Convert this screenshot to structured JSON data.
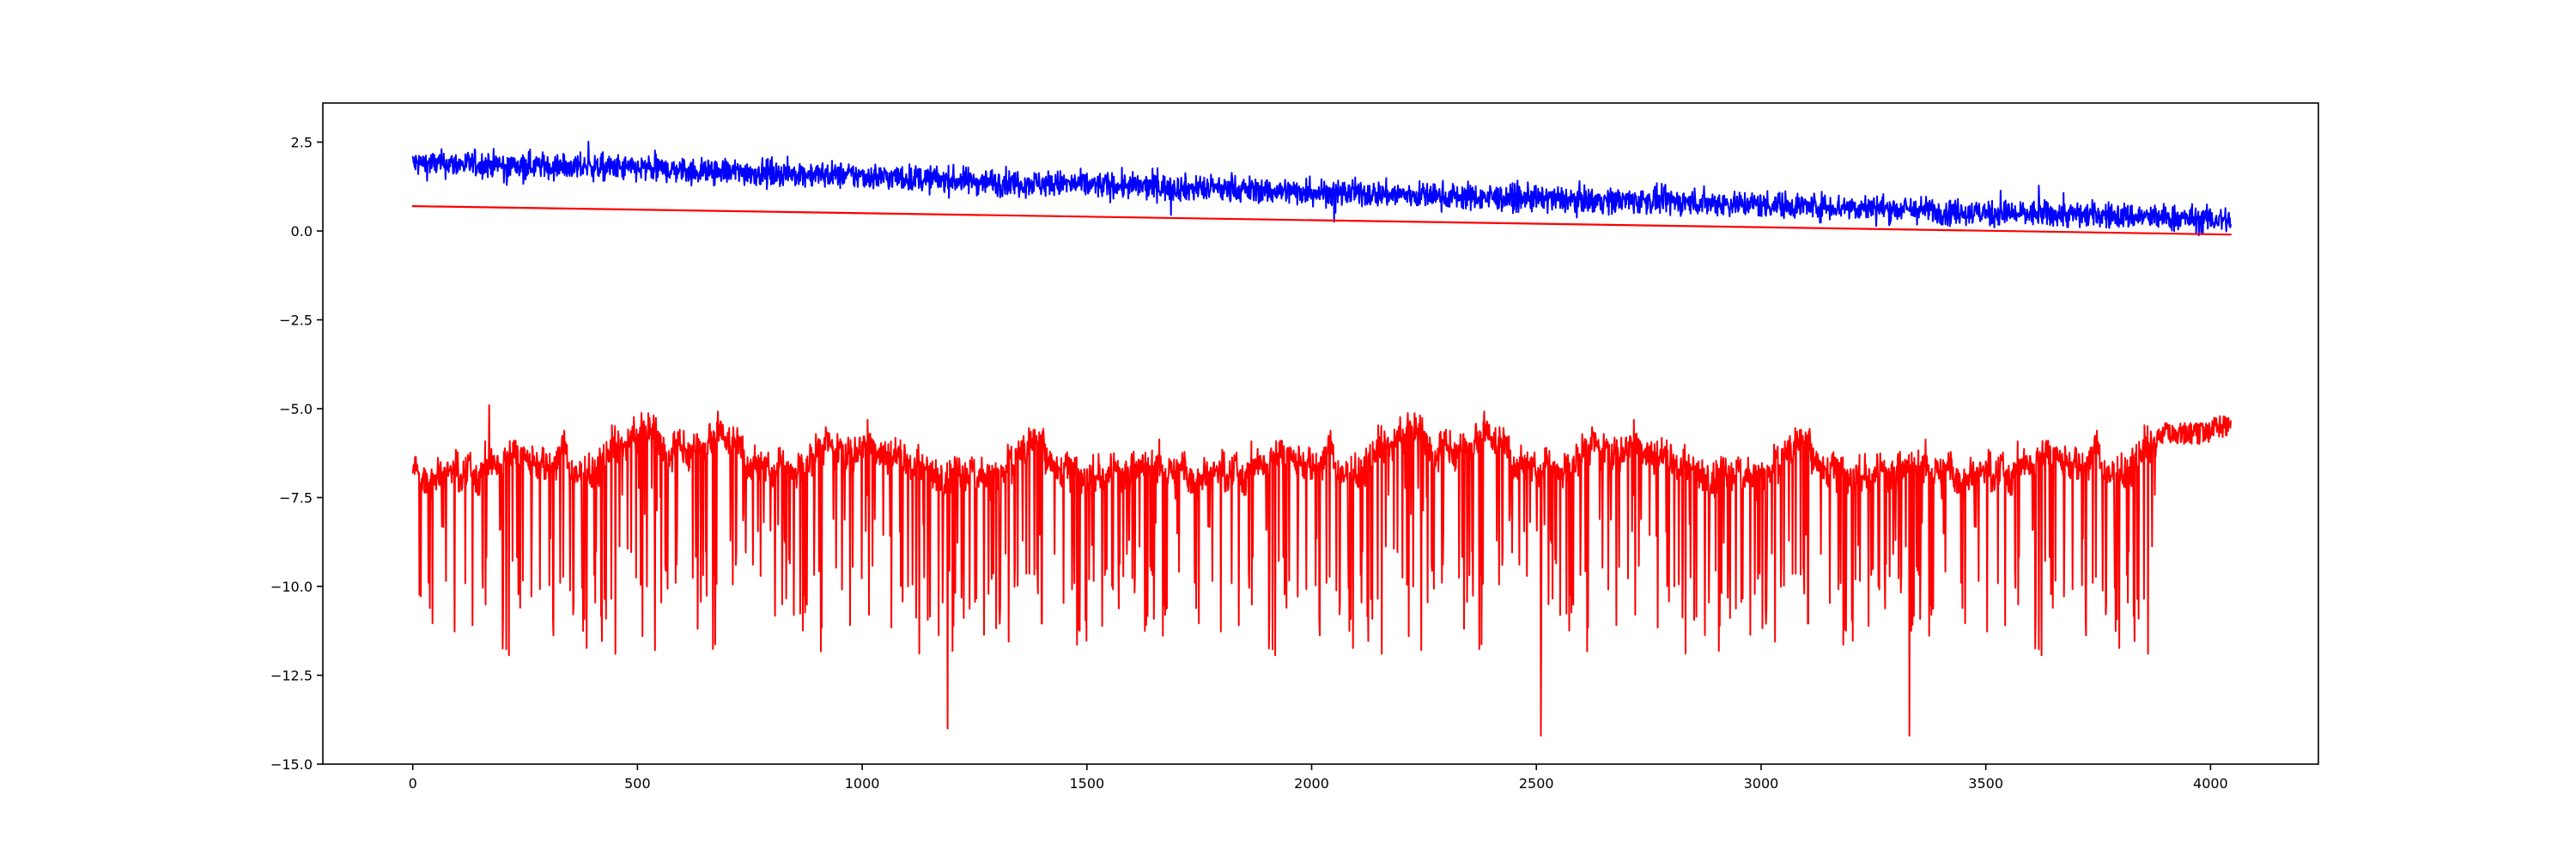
{
  "chart_data": {
    "type": "line",
    "title": "",
    "xlabel": "",
    "ylabel": "",
    "xlim": [
      -200,
      4240
    ],
    "ylim": [
      -15.0,
      3.6
    ],
    "x_ticks": [
      0,
      500,
      1000,
      1500,
      2000,
      2500,
      3000,
      3500,
      4000
    ],
    "x_tick_labels": [
      "0",
      "500",
      "1000",
      "1500",
      "2000",
      "2500",
      "3000",
      "3500",
      "4000"
    ],
    "y_ticks": [
      2.5,
      0.0,
      -2.5,
      -5.0,
      -7.5,
      -10.0,
      -12.5,
      -15.0
    ],
    "y_tick_labels": [
      "2.5",
      "0.0",
      "−2.5",
      "−5.0",
      "−7.5",
      "−10.0",
      "−12.5",
      "−15.0"
    ],
    "grid": false,
    "legend": "none",
    "series": [
      {
        "color": "#0000ff",
        "style": "noisy",
        "n_points": 4046,
        "x_start": 0,
        "x_end": 4045,
        "x": [
          0,
          250,
          500,
          750,
          1000,
          1250,
          1500,
          1750,
          2000,
          2250,
          2500,
          2750,
          3000,
          3250,
          3500,
          3750,
          4045
        ],
        "y": [
          1.9,
          1.85,
          1.75,
          1.65,
          1.55,
          1.4,
          1.3,
          1.2,
          1.1,
          1.0,
          0.9,
          0.85,
          0.75,
          0.65,
          0.5,
          0.45,
          0.3
        ],
        "noise_amplitude": 0.35
      },
      {
        "color": "#ff0000",
        "style": "straight",
        "x": [
          0,
          4045
        ],
        "y": [
          0.7,
          -0.1
        ]
      },
      {
        "color": "#ff0000",
        "style": "spiky",
        "n_points": 4046,
        "x_start": 0,
        "x_end": 4045,
        "baseline": -6.5,
        "x": [
          0,
          170,
          1190,
          2510,
          3330,
          4000,
          4045
        ],
        "y": [
          -6.8,
          -4.9,
          -14.0,
          -14.2,
          -14.2,
          -5.1,
          -5.9
        ],
        "typical_dip": -9.5
      }
    ]
  }
}
